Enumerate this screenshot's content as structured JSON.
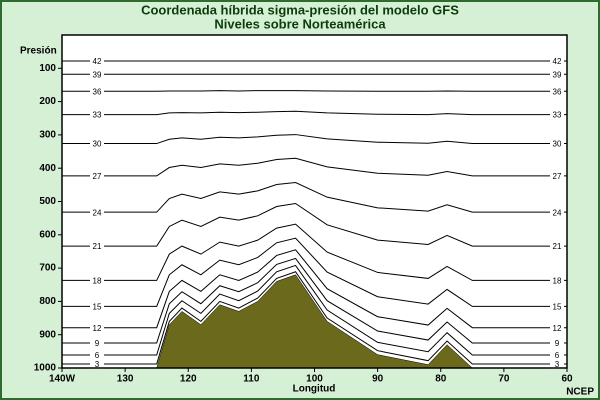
{
  "chart_data": {
    "type": "line",
    "title": "Coordenada híbrida sigma-presión del modelo GFS",
    "subtitle": "Niveles sobre Norteamérica",
    "ylabel": "Presión",
    "xlabel": "Longitud",
    "credit": "NCEP",
    "x": [
      140,
      125,
      123,
      121,
      118,
      115,
      112,
      109,
      106,
      103,
      98,
      90,
      82,
      79,
      75,
      60
    ],
    "xlim": [
      140,
      60
    ],
    "xticks": [
      {
        "value": 140,
        "label": "140W"
      },
      130,
      120,
      110,
      100,
      90,
      80,
      70,
      60
    ],
    "ylim": [
      1000,
      0
    ],
    "yticks": [
      100,
      200,
      300,
      400,
      500,
      600,
      700,
      800,
      900,
      1000
    ],
    "terrain": {
      "color": "#6b6a1c",
      "values": [
        1000,
        1000,
        870,
        830,
        870,
        810,
        830,
        800,
        740,
        720,
        860,
        960,
        990,
        930,
        1000,
        1000
      ]
    },
    "series": [
      {
        "name": "42",
        "color": "#000000",
        "values": [
          78,
          78,
          78,
          78,
          78,
          78,
          78,
          78,
          78,
          78,
          78,
          78,
          78,
          78,
          78,
          78
        ]
      },
      {
        "name": "39",
        "color": "#000000",
        "values": [
          118,
          118,
          118,
          118,
          118,
          118,
          118,
          118,
          118,
          118,
          118,
          118,
          118,
          118,
          118,
          118
        ]
      },
      {
        "name": "36",
        "color": "#000000",
        "values": [
          169,
          169,
          168,
          168,
          168,
          167,
          168,
          167,
          167,
          167,
          168,
          169,
          169,
          168,
          169,
          169
        ]
      },
      {
        "name": "33",
        "color": "#000000",
        "values": [
          239,
          239,
          234,
          233,
          234,
          232,
          233,
          232,
          230,
          229,
          234,
          238,
          239,
          236,
          239,
          239
        ]
      },
      {
        "name": "30",
        "color": "#000000",
        "values": [
          326,
          326,
          313,
          309,
          313,
          307,
          309,
          306,
          301,
          299,
          312,
          322,
          325,
          319,
          326,
          326
        ]
      },
      {
        "name": "27",
        "color": "#000000",
        "values": [
          423,
          423,
          398,
          391,
          398,
          387,
          391,
          385,
          374,
          370,
          396,
          415,
          421,
          410,
          423,
          423
        ]
      },
      {
        "name": "24",
        "color": "#000000",
        "values": [
          532,
          532,
          491,
          478,
          491,
          471,
          478,
          468,
          449,
          443,
          487,
          519,
          529,
          510,
          532,
          532
        ]
      },
      {
        "name": "21",
        "color": "#000000",
        "values": [
          634,
          634,
          575,
          556,
          575,
          547,
          556,
          543,
          515,
          506,
          570,
          616,
          629,
          602,
          634,
          634
        ]
      },
      {
        "name": "18",
        "color": "#000000",
        "values": [
          737,
          737,
          658,
          634,
          658,
          622,
          634,
          616,
          580,
          568,
          652,
          713,
          731,
          695,
          737,
          737
        ]
      },
      {
        "name": "15",
        "color": "#000000",
        "values": [
          815,
          815,
          720,
          690,
          720,
          676,
          690,
          668,
          624,
          610,
          712,
          786,
          808,
          764,
          815,
          815
        ]
      },
      {
        "name": "12",
        "color": "#000000",
        "values": [
          879,
          879,
          770,
          737,
          770,
          720,
          737,
          712,
          662,
          645,
          762,
          846,
          871,
          821,
          879,
          879
        ]
      },
      {
        "name": "9",
        "color": "#000000",
        "values": [
          925,
          925,
          807,
          771,
          807,
          753,
          771,
          744,
          689,
          671,
          798,
          889,
          916,
          862,
          925,
          925
        ]
      },
      {
        "name": "6",
        "color": "#000000",
        "values": [
          961,
          961,
          836,
          798,
          836,
          778,
          798,
          769,
          711,
          692,
          826,
          923,
          951,
          894,
          961,
          961
        ]
      },
      {
        "name": "3",
        "color": "#000000",
        "values": [
          988,
          988,
          860,
          820,
          860,
          800,
          820,
          790,
          731,
          711,
          850,
          948,
          978,
          919,
          988,
          988
        ]
      }
    ]
  }
}
